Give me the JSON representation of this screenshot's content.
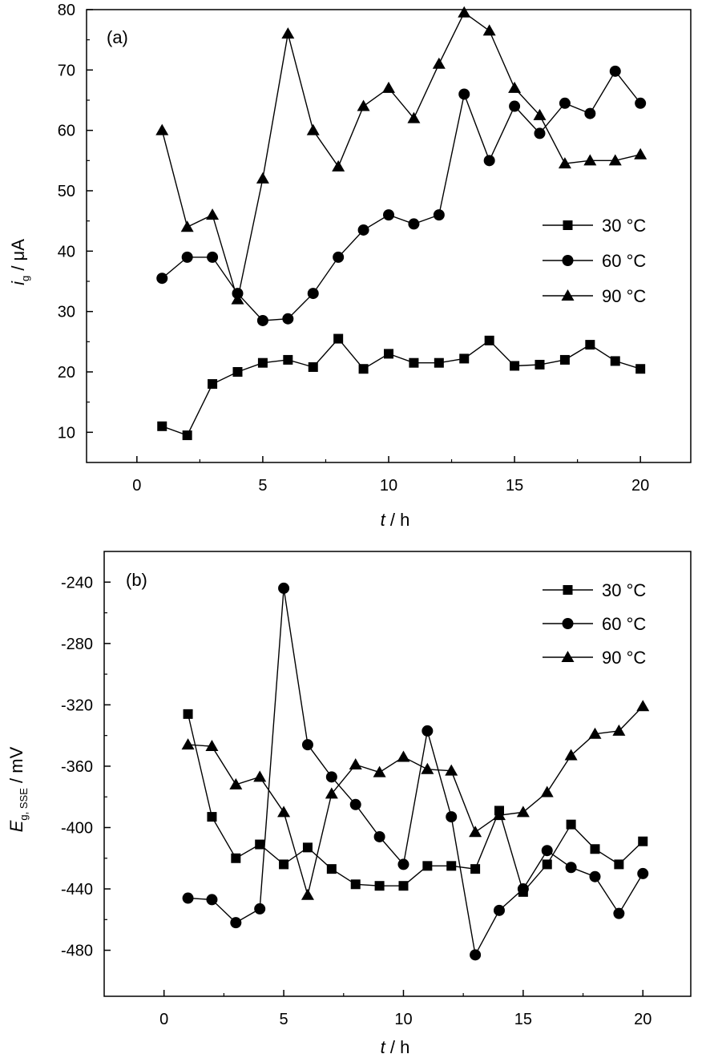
{
  "chart_data": [
    {
      "type": "line",
      "panel_label": "(a)",
      "xlabel": {
        "var": "t",
        "unit": " / h"
      },
      "ylabel": {
        "var": "i",
        "sub": "g",
        "unit": " / μA"
      },
      "xlim": [
        -2,
        22
      ],
      "ylim": [
        5,
        80
      ],
      "xticks": [
        0,
        5,
        10,
        15,
        20
      ],
      "yticks": [
        10,
        20,
        30,
        40,
        50,
        60,
        70,
        80
      ],
      "grid": false,
      "legend_position": "center-right",
      "series": [
        {
          "name": "30 °C",
          "marker": "square",
          "x": [
            1,
            2,
            3,
            4,
            5,
            6,
            7,
            8,
            9,
            10,
            11,
            12,
            13,
            14,
            15,
            16,
            17,
            18,
            19,
            20
          ],
          "y": [
            11,
            9.5,
            18,
            20,
            21.5,
            22,
            20.8,
            25.5,
            20.5,
            23,
            21.5,
            21.5,
            22.2,
            25.2,
            21,
            21.2,
            22,
            24.5,
            21.8,
            20.5
          ]
        },
        {
          "name": "60 °C",
          "marker": "circle",
          "x": [
            1,
            2,
            3,
            4,
            5,
            6,
            7,
            8,
            9,
            10,
            11,
            12,
            13,
            14,
            15,
            16,
            17,
            18,
            19,
            20
          ],
          "y": [
            35.5,
            39,
            39,
            33,
            28.5,
            28.8,
            33,
            39,
            43.5,
            46,
            44.5,
            46,
            66,
            55,
            64,
            59.5,
            64.5,
            62.8,
            69.8,
            64.5
          ]
        },
        {
          "name": "90 °C",
          "marker": "triangle",
          "x": [
            1,
            2,
            3,
            4,
            5,
            6,
            7,
            8,
            9,
            10,
            11,
            12,
            13,
            14,
            15,
            16,
            17,
            18,
            19,
            20
          ],
          "y": [
            60,
            44,
            46,
            32,
            52,
            76,
            60,
            54,
            64,
            67,
            62,
            71,
            79.5,
            76.5,
            67,
            62.5,
            54.5,
            55,
            55,
            56
          ]
        }
      ]
    },
    {
      "type": "line",
      "panel_label": "(b)",
      "xlabel": {
        "var": "t",
        "unit": " / h"
      },
      "ylabel": {
        "var": "E",
        "sub": "g, SSE",
        "unit": " / mV"
      },
      "xlim": [
        -2.5,
        22
      ],
      "ylim": [
        -510,
        -220
      ],
      "xticks": [
        0,
        5,
        10,
        15,
        20
      ],
      "yticks": [
        -240,
        -280,
        -320,
        -360,
        -400,
        -440,
        -480
      ],
      "grid": false,
      "legend_position": "top-right",
      "series": [
        {
          "name": "30 °C",
          "marker": "square",
          "x": [
            1,
            2,
            3,
            4,
            5,
            6,
            7,
            8,
            9,
            10,
            11,
            12,
            13,
            14,
            15,
            16,
            17,
            18,
            19,
            20
          ],
          "y": [
            -326,
            -393,
            -420,
            -411,
            -424,
            -413,
            -427,
            -437,
            -438,
            -438,
            -425,
            -425,
            -427,
            -389,
            -442,
            -424,
            -398,
            -414,
            -424,
            -409
          ]
        },
        {
          "name": "60 °C",
          "marker": "circle",
          "x": [
            1,
            2,
            3,
            4,
            5,
            6,
            7,
            8,
            9,
            10,
            11,
            12,
            13,
            14,
            15,
            16,
            17,
            18,
            19,
            20
          ],
          "y": [
            -446,
            -447,
            -462,
            -453,
            -244,
            -346,
            -367,
            -385,
            -406,
            -424,
            -337,
            -393,
            -483,
            -454,
            -440,
            -415,
            -426,
            -432,
            -456,
            -430
          ]
        },
        {
          "name": "90 °C",
          "marker": "triangle",
          "x": [
            1,
            2,
            3,
            4,
            5,
            6,
            7,
            8,
            9,
            10,
            11,
            12,
            13,
            14,
            15,
            16,
            17,
            18,
            19,
            20
          ],
          "y": [
            -346,
            -347,
            -372,
            -367,
            -390,
            -444,
            -378,
            -359,
            -364,
            -354,
            -362,
            -363,
            -403,
            -392,
            -390,
            -377,
            -353,
            -339,
            -337,
            -321
          ]
        }
      ]
    }
  ]
}
